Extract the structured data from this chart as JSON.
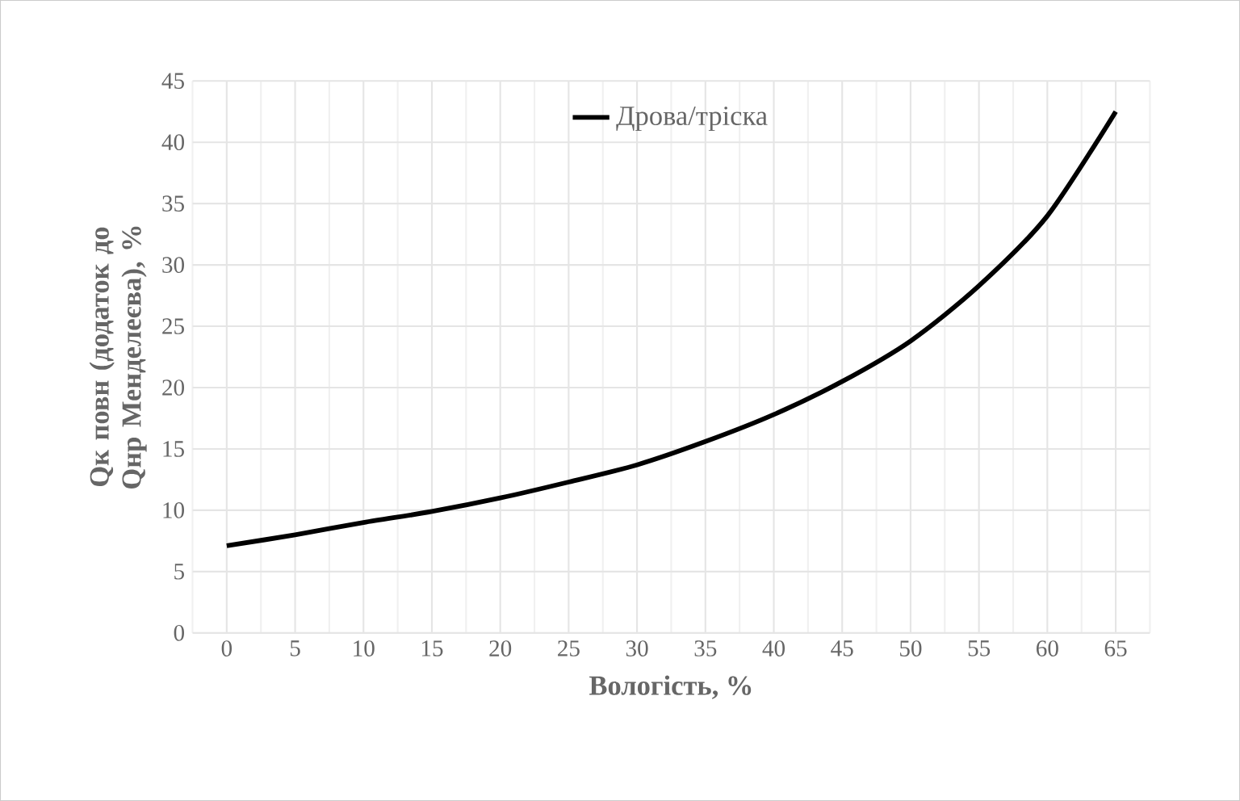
{
  "chart_data": {
    "type": "line",
    "xlabel": "Вологість, %",
    "ylabel": "Qк повн (додаток до Qнр Менделеєва), %",
    "categories": [
      "0",
      "5",
      "10",
      "15",
      "20",
      "25",
      "30",
      "35",
      "40",
      "45",
      "50",
      "55",
      "60",
      "65"
    ],
    "series": [
      {
        "name": "Дрова/тріска",
        "color": "#000000",
        "values": [
          7.1,
          8.0,
          9.0,
          9.9,
          11.0,
          12.3,
          13.7,
          15.6,
          17.8,
          20.5,
          23.8,
          28.3,
          34.0,
          42.5
        ]
      }
    ],
    "ylim": [
      0,
      45
    ],
    "yticks": [
      0,
      5,
      10,
      15,
      20,
      25,
      30,
      35,
      40,
      45
    ],
    "grid": true,
    "legend": "top",
    "marker": "none",
    "line_style": "solid"
  }
}
